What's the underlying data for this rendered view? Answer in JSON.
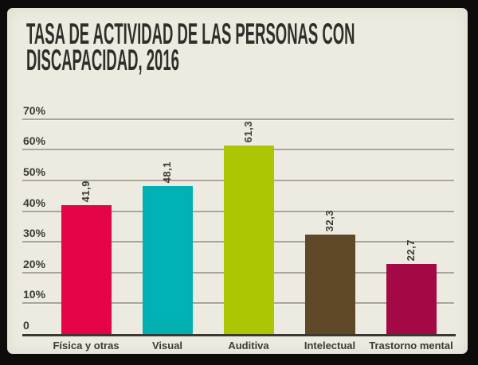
{
  "window": {
    "frame_color": "#0d0c0a",
    "panel_color": "#edebdf"
  },
  "title": {
    "line1": "TASA DE ACTIVIDAD DE LAS PERSONAS CON",
    "line2": "DISCAPACIDAD, 2016",
    "color": "#2f2e2a"
  },
  "chart_data": {
    "type": "bar",
    "title": "TASA DE ACTIVIDAD DE LAS PERSONAS CON DISCAPACIDAD, 2016",
    "categories": [
      "Física y otras",
      "Visual",
      "Auditiva",
      "Intelectual",
      "Trastorno mental"
    ],
    "values": [
      41.9,
      48.1,
      61.3,
      32.3,
      22.7
    ],
    "value_labels": [
      "41,9",
      "48,1",
      "61,3",
      "32,3",
      "22,7"
    ],
    "bar_colors": [
      "#e60347",
      "#00b1b4",
      "#adc602",
      "#5e4827",
      "#a40845"
    ],
    "xlabel": "",
    "ylabel": "",
    "ylim": [
      0,
      70
    ],
    "yticks": [
      {
        "value": 0,
        "label": "0"
      },
      {
        "value": 10,
        "label": "10%"
      },
      {
        "value": 20,
        "label": "20%"
      },
      {
        "value": 30,
        "label": "30%"
      },
      {
        "value": 40,
        "label": "40%"
      },
      {
        "value": 50,
        "label": "50%"
      },
      {
        "value": 60,
        "label": "60%"
      },
      {
        "value": 70,
        "label": "70%"
      }
    ],
    "grid": true,
    "legend": "none"
  },
  "colors": {
    "gridline": "#a8a499",
    "axis": "#3a3831",
    "text": "#3c3b36"
  }
}
